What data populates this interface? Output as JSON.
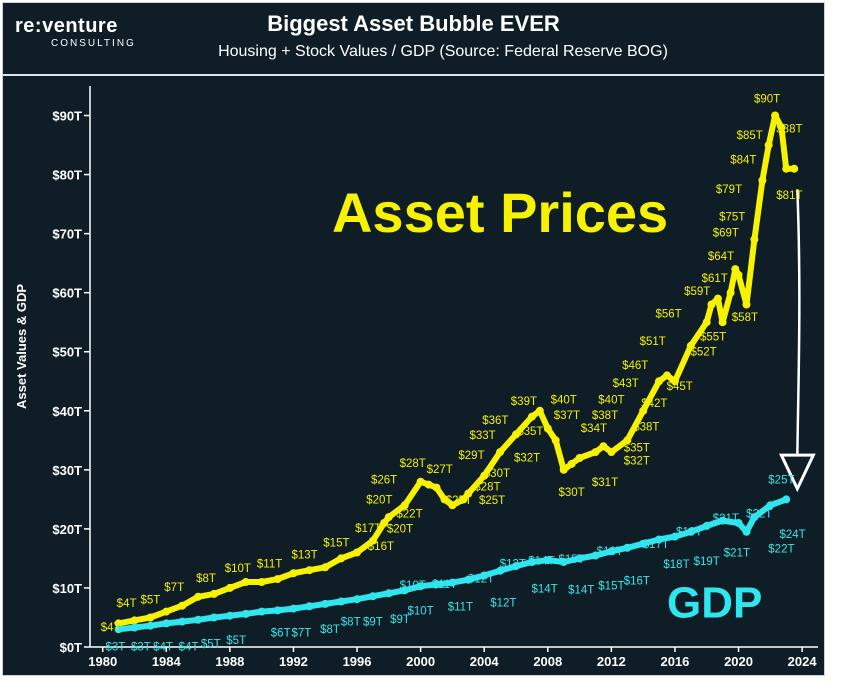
{
  "logo": {
    "main": "re:venture",
    "sub": "CONSULTING"
  },
  "chart_data": {
    "type": "line",
    "title": "Biggest Asset Bubble EVER",
    "subtitle": "Housing + Stock Values / GDP (Source: Federal Reserve BOG)",
    "ylabel": "Asset Values & GDP",
    "xlabel": "",
    "ylim": [
      0,
      95
    ],
    "xlim": [
      1979.2,
      2025
    ],
    "y_ticks": [
      0,
      10,
      20,
      30,
      40,
      50,
      60,
      70,
      80,
      90
    ],
    "y_tick_labels": [
      "$0T",
      "$10T",
      "$20T",
      "$30T",
      "$40T",
      "$50T",
      "$60T",
      "$70T",
      "$80T",
      "$90T"
    ],
    "x_ticks": [
      1980,
      1984,
      1988,
      1992,
      1996,
      2000,
      2004,
      2008,
      2012,
      2016,
      2020,
      2024
    ],
    "colors": {
      "asset": "#f7f300",
      "gdp": "#2fe6ef",
      "background": "#0f1e26"
    },
    "series": [
      {
        "name": "Asset Prices",
        "x": [
          1981,
          1982,
          1983,
          1984,
          1985,
          1986,
          1987,
          1988,
          1989,
          1990,
          1991,
          1992,
          1993,
          1994,
          1995,
          1996,
          1997,
          1997.7,
          1998,
          1999,
          2000,
          2000.5,
          2001,
          2001.5,
          2002,
          2002.7,
          2003,
          2004,
          2005,
          2006,
          2007,
          2007.5,
          2008,
          2008.5,
          2009,
          2009.5,
          2010,
          2011,
          2011.5,
          2012,
          2013,
          2014,
          2015,
          2015.5,
          2016,
          2017,
          2018,
          2018.3,
          2018.7,
          2019,
          2019.5,
          2019.8,
          2020,
          2020.5,
          2021,
          2021.5,
          2021.9,
          2022.3,
          2022.7,
          2023,
          2023.5
        ],
        "values": [
          4,
          4.5,
          5,
          6,
          7,
          8.5,
          9,
          10,
          11,
          11,
          11.5,
          12.5,
          13,
          13.5,
          15,
          16,
          18,
          21,
          22,
          24,
          28,
          27.5,
          27,
          25,
          24,
          25,
          26,
          29,
          33,
          36,
          39,
          40,
          37,
          35,
          30,
          31,
          32,
          33,
          34,
          33,
          35,
          40,
          45,
          46,
          45,
          51,
          55,
          58,
          59,
          55,
          60,
          64,
          63,
          58,
          69,
          79,
          85,
          90,
          88,
          81,
          81
        ]
      },
      {
        "name": "GDP",
        "x": [
          1981,
          1982,
          1983,
          1984,
          1985,
          1986,
          1987,
          1988,
          1989,
          1990,
          1991,
          1992,
          1993,
          1994,
          1995,
          1996,
          1997,
          1998,
          1999,
          2000,
          2001,
          2002,
          2003,
          2004,
          2005,
          2006,
          2007,
          2008,
          2009,
          2010,
          2011,
          2012,
          2013,
          2014,
          2015,
          2016,
          2017,
          2018,
          2019,
          2020,
          2020.5,
          2021,
          2022,
          2023
        ],
        "values": [
          3,
          3.3,
          3.6,
          4,
          4.3,
          4.6,
          5,
          5.3,
          5.6,
          6,
          6.2,
          6.5,
          6.9,
          7.3,
          7.7,
          8.1,
          8.6,
          9.1,
          9.6,
          10.3,
          10.6,
          10.9,
          11.4,
          12.1,
          12.9,
          13.7,
          14.4,
          14.7,
          14.4,
          15,
          15.5,
          16.2,
          16.8,
          17.5,
          18.2,
          18.7,
          19.5,
          20.5,
          21.4,
          21,
          19.5,
          22,
          24,
          25
        ]
      }
    ],
    "annotations": {
      "asset": [
        {
          "text": "$4T",
          "x": 1980.5,
          "y": 2.7
        },
        {
          "text": "$4T",
          "x": 1981.5,
          "y": 6.8
        },
        {
          "text": "$5T",
          "x": 1983,
          "y": 7.4
        },
        {
          "text": "$7T",
          "x": 1984.5,
          "y": 9.5
        },
        {
          "text": "$8T",
          "x": 1986.5,
          "y": 11
        },
        {
          "text": "$10T",
          "x": 1988.5,
          "y": 12.7
        },
        {
          "text": "$11T",
          "x": 1990.5,
          "y": 13.5
        },
        {
          "text": "$13T",
          "x": 1992.7,
          "y": 15
        },
        {
          "text": "$15T",
          "x": 1994.7,
          "y": 17
        },
        {
          "text": "$17T",
          "x": 1996.7,
          "y": 19.5
        },
        {
          "text": "$20T",
          "x": 1997.4,
          "y": 24.3
        },
        {
          "text": "$26T",
          "x": 1997.7,
          "y": 27.7
        },
        {
          "text": "$28T",
          "x": 1999.5,
          "y": 30.5
        },
        {
          "text": "$27T",
          "x": 2001.2,
          "y": 29.5
        },
        {
          "text": "$29T",
          "x": 2003.2,
          "y": 31.8
        },
        {
          "text": "$33T",
          "x": 2003.9,
          "y": 35.2
        },
        {
          "text": "$36T",
          "x": 2004.7,
          "y": 37.8
        },
        {
          "text": "$39T",
          "x": 2006.5,
          "y": 41
        },
        {
          "text": "$40T",
          "x": 2009,
          "y": 41.2
        },
        {
          "text": "$37T",
          "x": 2009.2,
          "y": 38.6
        },
        {
          "text": "$35T",
          "x": 2006.9,
          "y": 35.9
        },
        {
          "text": "$34T",
          "x": 2010.9,
          "y": 36.4
        },
        {
          "text": "$40T",
          "x": 2012,
          "y": 41.2
        },
        {
          "text": "$38T",
          "x": 2011.6,
          "y": 38.6
        },
        {
          "text": "$43T",
          "x": 2012.9,
          "y": 44
        },
        {
          "text": "$46T",
          "x": 2013.5,
          "y": 47.1
        },
        {
          "text": "$42T",
          "x": 2014.7,
          "y": 40.6
        },
        {
          "text": "$38T",
          "x": 2014.2,
          "y": 36.7
        },
        {
          "text": "$35T",
          "x": 2013.6,
          "y": 33.1
        },
        {
          "text": "$51T",
          "x": 2014.6,
          "y": 51.1
        },
        {
          "text": "$56T",
          "x": 2015.6,
          "y": 55.8
        },
        {
          "text": "$45T",
          "x": 2016.3,
          "y": 43.5
        },
        {
          "text": "$59T",
          "x": 2017.4,
          "y": 59.6
        },
        {
          "text": "$52T",
          "x": 2017.8,
          "y": 49.4
        },
        {
          "text": "$55T",
          "x": 2018.4,
          "y": 51.9
        },
        {
          "text": "$61T",
          "x": 2018.5,
          "y": 61.8
        },
        {
          "text": "$64T",
          "x": 2018.9,
          "y": 65.5
        },
        {
          "text": "$69T",
          "x": 2019.2,
          "y": 69.5
        },
        {
          "text": "$75T",
          "x": 2019.6,
          "y": 72.2
        },
        {
          "text": "$79T",
          "x": 2019.4,
          "y": 76.9
        },
        {
          "text": "$84T",
          "x": 2020.3,
          "y": 81.9
        },
        {
          "text": "$85T",
          "x": 2020.7,
          "y": 86
        },
        {
          "text": "$90T",
          "x": 2021.8,
          "y": 92.2
        },
        {
          "text": "$88T",
          "x": 2023.2,
          "y": 87.1
        },
        {
          "text": "$81T",
          "x": 2023.2,
          "y": 75.9
        },
        {
          "text": "$58T",
          "x": 2020.4,
          "y": 55.2
        },
        {
          "text": "$32T",
          "x": 2006.7,
          "y": 31.4
        },
        {
          "text": "$30T",
          "x": 2009.5,
          "y": 25.6
        },
        {
          "text": "$31T",
          "x": 2011.6,
          "y": 27.3
        },
        {
          "text": "$32T",
          "x": 2013.6,
          "y": 30.9
        },
        {
          "text": "$30T",
          "x": 2004.8,
          "y": 28.8
        },
        {
          "text": "$28T",
          "x": 2004.2,
          "y": 26.5
        },
        {
          "text": "$25T",
          "x": 2004.5,
          "y": 24.2
        },
        {
          "text": "$25T",
          "x": 2002.4,
          "y": 24.2
        },
        {
          "text": "$22T",
          "x": 1999.3,
          "y": 21.9
        },
        {
          "text": "$20T",
          "x": 1998.7,
          "y": 19.4
        },
        {
          "text": "$16T",
          "x": 1997.5,
          "y": 16.4
        }
      ],
      "gdp": [
        {
          "text": "$3T",
          "x": 1980.8,
          "y": -0.6
        },
        {
          "text": "$3T",
          "x": 1982.4,
          "y": -0.6
        },
        {
          "text": "$4T",
          "x": 1983.8,
          "y": -0.6
        },
        {
          "text": "$4T",
          "x": 1985.4,
          "y": -0.6
        },
        {
          "text": "$5T",
          "x": 1986.8,
          "y": -0.1
        },
        {
          "text": "$5T",
          "x": 1988.4,
          "y": 0.5
        },
        {
          "text": "$6T",
          "x": 1991.2,
          "y": 1.8
        },
        {
          "text": "$7T",
          "x": 1992.5,
          "y": 1.8
        },
        {
          "text": "$8T",
          "x": 1994.3,
          "y": 2.4
        },
        {
          "text": "$8T",
          "x": 1995.6,
          "y": 3.6
        },
        {
          "text": "$9T",
          "x": 1997,
          "y": 3.6
        },
        {
          "text": "$9T",
          "x": 1998.7,
          "y": 4.1
        },
        {
          "text": "$10T",
          "x": 2000,
          "y": 5.5
        },
        {
          "text": "$10T",
          "x": 1999.5,
          "y": 9.8
        },
        {
          "text": "$11T",
          "x": 2001.5,
          "y": 10
        },
        {
          "text": "$11T",
          "x": 2002.5,
          "y": 6.2
        },
        {
          "text": "$12T",
          "x": 2003.8,
          "y": 10.9
        },
        {
          "text": "$12T",
          "x": 2005.2,
          "y": 6.9
        },
        {
          "text": "$13T",
          "x": 2005.8,
          "y": 13.5
        },
        {
          "text": "$14T",
          "x": 2007.6,
          "y": 14
        },
        {
          "text": "$15T",
          "x": 2009.5,
          "y": 14.2
        },
        {
          "text": "$14T",
          "x": 2007.8,
          "y": 9.2
        },
        {
          "text": "$14T",
          "x": 2010.1,
          "y": 9.1
        },
        {
          "text": "$15T",
          "x": 2012,
          "y": 9.7
        },
        {
          "text": "$16T",
          "x": 2011.9,
          "y": 15.6
        },
        {
          "text": "$16T",
          "x": 2013.6,
          "y": 10.6
        },
        {
          "text": "$17T",
          "x": 2014.8,
          "y": 16.8
        },
        {
          "text": "$18T",
          "x": 2016.1,
          "y": 13.4
        },
        {
          "text": "$19T",
          "x": 2016.9,
          "y": 18.9
        },
        {
          "text": "$19T",
          "x": 2018,
          "y": 13.9
        },
        {
          "text": "$21T",
          "x": 2019.2,
          "y": 21.2
        },
        {
          "text": "$21T",
          "x": 2019.9,
          "y": 15.3
        },
        {
          "text": "$22T",
          "x": 2021.3,
          "y": 21.9
        },
        {
          "text": "$22T",
          "x": 2022.7,
          "y": 16
        },
        {
          "text": "$24T",
          "x": 2023.4,
          "y": 18.5
        },
        {
          "text": "$25T",
          "x": 2022.7,
          "y": 27.7
        }
      ],
      "big_labels": [
        {
          "text": "Asset Prices",
          "series": "asset",
          "x": 2005,
          "y": 70.3
        },
        {
          "text": "GDP",
          "series": "gdp",
          "x": 2018.5,
          "y": 5
        }
      ]
    }
  }
}
